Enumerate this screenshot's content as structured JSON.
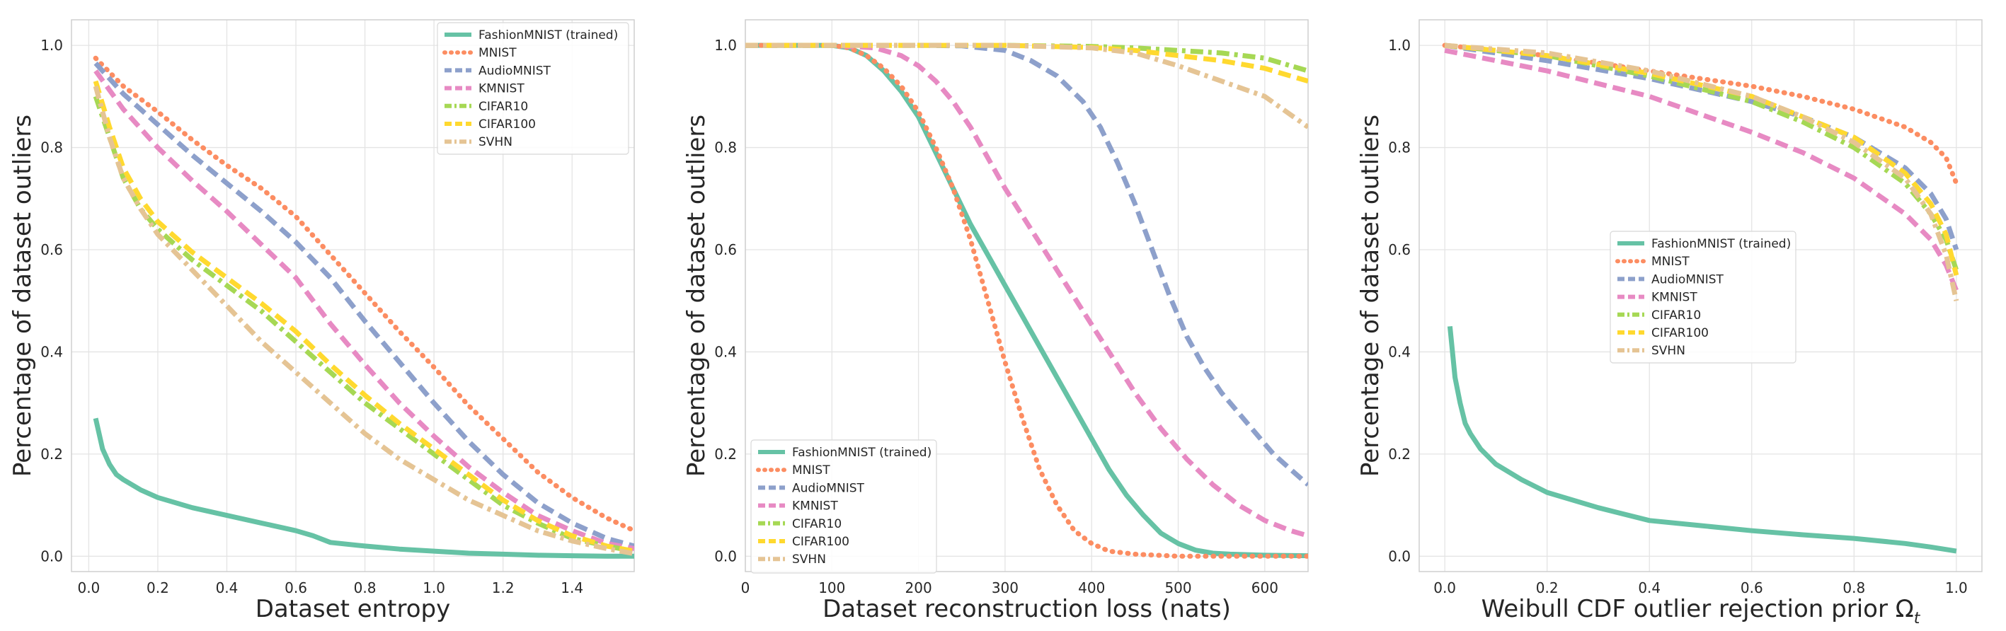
{
  "colors": {
    "FashionMNIST (trained)": "#66c2a5",
    "MNIST": "#fc8d62",
    "AudioMNIST": "#8da0cb",
    "KMNIST": "#e78ac3",
    "CIFAR10": "#a6d854",
    "CIFAR100": "#ffd92f",
    "SVHN": "#e5c494"
  },
  "chart_data": [
    {
      "type": "line",
      "xlabel": "Dataset entropy",
      "ylabel": "Percentage of dataset outliers",
      "xlim": [
        -0.05,
        1.58
      ],
      "ylim": [
        -0.03,
        1.05
      ],
      "xticks": [
        0.0,
        0.2,
        0.4,
        0.6,
        0.8,
        1.0,
        1.2,
        1.4
      ],
      "xtick_labels": [
        "0.0",
        "0.2",
        "0.4",
        "0.6",
        "0.8",
        "1.0",
        "1.2",
        "1.4"
      ],
      "yticks": [
        0.0,
        0.2,
        0.4,
        0.6,
        0.8,
        1.0
      ],
      "ytick_labels": [
        "0.0",
        "0.2",
        "0.4",
        "0.6",
        "0.8",
        "1.0"
      ],
      "grid": true,
      "legend_position": "top-right",
      "series": [
        {
          "name": "FashionMNIST (trained)",
          "style": "solid",
          "x": [
            0.02,
            0.04,
            0.06,
            0.08,
            0.1,
            0.15,
            0.2,
            0.3,
            0.4,
            0.5,
            0.6,
            0.65,
            0.7,
            0.8,
            0.9,
            1.0,
            1.1,
            1.2,
            1.3,
            1.4,
            1.5,
            1.58
          ],
          "y": [
            0.27,
            0.21,
            0.18,
            0.16,
            0.15,
            0.13,
            0.115,
            0.095,
            0.08,
            0.065,
            0.05,
            0.04,
            0.027,
            0.02,
            0.014,
            0.01,
            0.006,
            0.004,
            0.002,
            0.001,
            0.0,
            0.0
          ]
        },
        {
          "name": "MNIST",
          "style": "dotted",
          "x": [
            0.02,
            0.1,
            0.2,
            0.3,
            0.4,
            0.5,
            0.6,
            0.7,
            0.8,
            0.9,
            1.0,
            1.1,
            1.2,
            1.3,
            1.4,
            1.5,
            1.58
          ],
          "y": [
            0.975,
            0.92,
            0.87,
            0.815,
            0.765,
            0.72,
            0.665,
            0.59,
            0.515,
            0.44,
            0.37,
            0.295,
            0.23,
            0.165,
            0.115,
            0.075,
            0.05
          ]
        },
        {
          "name": "AudioMNIST",
          "style": "dashed",
          "x": [
            0.02,
            0.1,
            0.2,
            0.3,
            0.4,
            0.5,
            0.6,
            0.7,
            0.8,
            0.9,
            1.0,
            1.1,
            1.2,
            1.3,
            1.4,
            1.5,
            1.58
          ],
          "y": [
            0.965,
            0.905,
            0.845,
            0.785,
            0.73,
            0.675,
            0.615,
            0.545,
            0.46,
            0.38,
            0.3,
            0.225,
            0.16,
            0.105,
            0.065,
            0.035,
            0.02
          ]
        },
        {
          "name": "KMNIST",
          "style": "dashed",
          "x": [
            0.02,
            0.1,
            0.2,
            0.3,
            0.4,
            0.5,
            0.6,
            0.7,
            0.8,
            0.9,
            1.0,
            1.1,
            1.2,
            1.3,
            1.4,
            1.5,
            1.58
          ],
          "y": [
            0.95,
            0.875,
            0.8,
            0.735,
            0.675,
            0.61,
            0.545,
            0.455,
            0.375,
            0.3,
            0.235,
            0.175,
            0.125,
            0.08,
            0.05,
            0.025,
            0.015
          ]
        },
        {
          "name": "CIFAR10",
          "style": "dashdot",
          "x": [
            0.02,
            0.06,
            0.1,
            0.15,
            0.2,
            0.3,
            0.4,
            0.5,
            0.6,
            0.7,
            0.8,
            0.9,
            1.0,
            1.1,
            1.2,
            1.3,
            1.4,
            1.5,
            1.58
          ],
          "y": [
            0.9,
            0.82,
            0.74,
            0.68,
            0.64,
            0.58,
            0.53,
            0.48,
            0.42,
            0.36,
            0.3,
            0.25,
            0.2,
            0.15,
            0.1,
            0.065,
            0.035,
            0.02,
            0.01
          ]
        },
        {
          "name": "CIFAR100",
          "style": "dashed",
          "x": [
            0.02,
            0.06,
            0.1,
            0.15,
            0.2,
            0.3,
            0.4,
            0.5,
            0.6,
            0.7,
            0.8,
            0.9,
            1.0,
            1.1,
            1.2,
            1.3,
            1.4,
            1.5,
            1.58
          ],
          "y": [
            0.93,
            0.84,
            0.76,
            0.7,
            0.655,
            0.595,
            0.545,
            0.495,
            0.44,
            0.375,
            0.315,
            0.26,
            0.21,
            0.16,
            0.11,
            0.07,
            0.04,
            0.02,
            0.01
          ]
        },
        {
          "name": "SVHN",
          "style": "dashdot",
          "x": [
            0.02,
            0.06,
            0.1,
            0.15,
            0.2,
            0.3,
            0.4,
            0.5,
            0.6,
            0.7,
            0.8,
            0.9,
            1.0,
            1.1,
            1.2,
            1.3,
            1.4,
            1.5,
            1.58
          ],
          "y": [
            0.92,
            0.82,
            0.74,
            0.68,
            0.63,
            0.56,
            0.49,
            0.42,
            0.36,
            0.3,
            0.24,
            0.19,
            0.15,
            0.11,
            0.08,
            0.05,
            0.03,
            0.015,
            0.005
          ]
        }
      ]
    },
    {
      "type": "line",
      "xlabel": "Dataset reconstruction loss (nats)",
      "ylabel": "Percentage of dataset outliers",
      "xlim": [
        0,
        650
      ],
      "ylim": [
        -0.03,
        1.05
      ],
      "xticks": [
        0,
        100,
        200,
        300,
        400,
        500,
        600
      ],
      "xtick_labels": [
        "0",
        "100",
        "200",
        "300",
        "400",
        "500",
        "600"
      ],
      "yticks": [
        0.0,
        0.2,
        0.4,
        0.6,
        0.8,
        1.0
      ],
      "ytick_labels": [
        "0.0",
        "0.2",
        "0.4",
        "0.6",
        "0.8",
        "1.0"
      ],
      "grid": true,
      "legend_position": "bottom-left",
      "series": [
        {
          "name": "FashionMNIST (trained)",
          "style": "solid",
          "x": [
            0,
            100,
            120,
            140,
            160,
            180,
            200,
            220,
            240,
            260,
            280,
            300,
            320,
            340,
            360,
            380,
            400,
            420,
            440,
            460,
            480,
            500,
            520,
            540,
            560,
            600,
            650
          ],
          "y": [
            1.0,
            1.0,
            0.995,
            0.98,
            0.95,
            0.91,
            0.86,
            0.79,
            0.72,
            0.65,
            0.59,
            0.53,
            0.47,
            0.41,
            0.35,
            0.29,
            0.23,
            0.17,
            0.12,
            0.08,
            0.045,
            0.025,
            0.012,
            0.006,
            0.004,
            0.002,
            0.001
          ]
        },
        {
          "name": "MNIST",
          "style": "dotted",
          "x": [
            0,
            100,
            120,
            140,
            160,
            180,
            200,
            220,
            240,
            260,
            280,
            300,
            320,
            340,
            360,
            380,
            400,
            420,
            450,
            500,
            650
          ],
          "y": [
            1.0,
            1.0,
            0.995,
            0.98,
            0.955,
            0.92,
            0.87,
            0.8,
            0.72,
            0.62,
            0.5,
            0.38,
            0.27,
            0.17,
            0.1,
            0.05,
            0.025,
            0.01,
            0.004,
            0.0,
            0.0
          ]
        },
        {
          "name": "AudioMNIST",
          "style": "dashed",
          "x": [
            0,
            200,
            250,
            300,
            330,
            360,
            390,
            410,
            430,
            450,
            470,
            490,
            510,
            530,
            550,
            570,
            590,
            610,
            630,
            650
          ],
          "y": [
            1.0,
            1.0,
            0.999,
            0.99,
            0.97,
            0.94,
            0.89,
            0.84,
            0.77,
            0.69,
            0.6,
            0.51,
            0.43,
            0.37,
            0.32,
            0.28,
            0.24,
            0.2,
            0.17,
            0.14
          ]
        },
        {
          "name": "KMNIST",
          "style": "dashed",
          "x": [
            0,
            100,
            150,
            180,
            200,
            220,
            240,
            260,
            280,
            300,
            330,
            360,
            390,
            420,
            450,
            480,
            510,
            540,
            570,
            600,
            630,
            650
          ],
          "y": [
            1.0,
            1.0,
            0.995,
            0.98,
            0.96,
            0.93,
            0.89,
            0.84,
            0.78,
            0.72,
            0.64,
            0.56,
            0.48,
            0.4,
            0.32,
            0.25,
            0.19,
            0.14,
            0.1,
            0.07,
            0.05,
            0.04
          ]
        },
        {
          "name": "CIFAR10",
          "style": "dashdot",
          "x": [
            0,
            300,
            400,
            450,
            500,
            550,
            600,
            650
          ],
          "y": [
            1.0,
            1.0,
            0.998,
            0.995,
            0.99,
            0.985,
            0.975,
            0.95
          ]
        },
        {
          "name": "CIFAR100",
          "style": "dashed",
          "x": [
            0,
            300,
            400,
            450,
            500,
            550,
            600,
            650
          ],
          "y": [
            1.0,
            1.0,
            0.996,
            0.99,
            0.98,
            0.97,
            0.955,
            0.93
          ]
        },
        {
          "name": "SVHN",
          "style": "dashdot",
          "x": [
            0,
            300,
            400,
            450,
            500,
            550,
            600,
            650
          ],
          "y": [
            1.0,
            1.0,
            0.995,
            0.985,
            0.96,
            0.93,
            0.9,
            0.84
          ]
        }
      ]
    },
    {
      "type": "line",
      "xlabel": "Weibull CDF outlier rejection prior Ω",
      "xlabel_subscript": "t",
      "ylabel": "Percentage of dataset outliers",
      "xlim": [
        -0.05,
        1.05
      ],
      "ylim": [
        -0.03,
        1.05
      ],
      "xticks": [
        0.0,
        0.2,
        0.4,
        0.6,
        0.8,
        1.0
      ],
      "xtick_labels": [
        "0.0",
        "0.2",
        "0.4",
        "0.6",
        "0.8",
        "1.0"
      ],
      "yticks": [
        0.0,
        0.2,
        0.4,
        0.6,
        0.8,
        1.0
      ],
      "ytick_labels": [
        "0.0",
        "0.2",
        "0.4",
        "0.6",
        "0.8",
        "1.0"
      ],
      "grid": true,
      "legend_position": "center",
      "series": [
        {
          "name": "FashionMNIST (trained)",
          "style": "solid",
          "x": [
            0.01,
            0.015,
            0.02,
            0.03,
            0.04,
            0.05,
            0.07,
            0.1,
            0.15,
            0.2,
            0.3,
            0.4,
            0.5,
            0.6,
            0.7,
            0.8,
            0.9,
            0.95,
            1.0
          ],
          "y": [
            0.45,
            0.4,
            0.35,
            0.3,
            0.26,
            0.24,
            0.21,
            0.18,
            0.15,
            0.125,
            0.095,
            0.07,
            0.06,
            0.05,
            0.042,
            0.035,
            0.025,
            0.018,
            0.01
          ]
        },
        {
          "name": "MNIST",
          "style": "dotted",
          "x": [
            0.0,
            0.2,
            0.4,
            0.6,
            0.7,
            0.8,
            0.9,
            0.95,
            0.98,
            1.0
          ],
          "y": [
            1.0,
            0.98,
            0.95,
            0.92,
            0.9,
            0.875,
            0.84,
            0.81,
            0.78,
            0.73
          ]
        },
        {
          "name": "AudioMNIST",
          "style": "dashed",
          "x": [
            0.0,
            0.2,
            0.4,
            0.6,
            0.7,
            0.8,
            0.9,
            0.95,
            0.98,
            1.0
          ],
          "y": [
            1.0,
            0.97,
            0.935,
            0.89,
            0.86,
            0.82,
            0.76,
            0.71,
            0.66,
            0.6
          ]
        },
        {
          "name": "KMNIST",
          "style": "dashed",
          "x": [
            0.0,
            0.2,
            0.4,
            0.6,
            0.7,
            0.8,
            0.9,
            0.95,
            0.98,
            1.0
          ],
          "y": [
            0.99,
            0.95,
            0.9,
            0.83,
            0.79,
            0.74,
            0.67,
            0.62,
            0.57,
            0.52
          ]
        },
        {
          "name": "CIFAR10",
          "style": "dashdot",
          "x": [
            0.0,
            0.2,
            0.4,
            0.6,
            0.7,
            0.8,
            0.9,
            0.95,
            0.98,
            1.0
          ],
          "y": [
            1.0,
            0.98,
            0.94,
            0.89,
            0.85,
            0.8,
            0.73,
            0.67,
            0.62,
            0.56
          ]
        },
        {
          "name": "CIFAR100",
          "style": "dashed",
          "x": [
            0.0,
            0.2,
            0.4,
            0.6,
            0.7,
            0.8,
            0.9,
            0.95,
            0.98,
            1.0
          ],
          "y": [
            1.0,
            0.98,
            0.945,
            0.9,
            0.86,
            0.82,
            0.75,
            0.69,
            0.63,
            0.55
          ]
        },
        {
          "name": "SVHN",
          "style": "dashdot",
          "x": [
            0.0,
            0.2,
            0.4,
            0.6,
            0.7,
            0.8,
            0.9,
            0.95,
            0.98,
            1.0
          ],
          "y": [
            1.0,
            0.985,
            0.95,
            0.9,
            0.86,
            0.81,
            0.74,
            0.67,
            0.59,
            0.5
          ]
        }
      ]
    }
  ]
}
